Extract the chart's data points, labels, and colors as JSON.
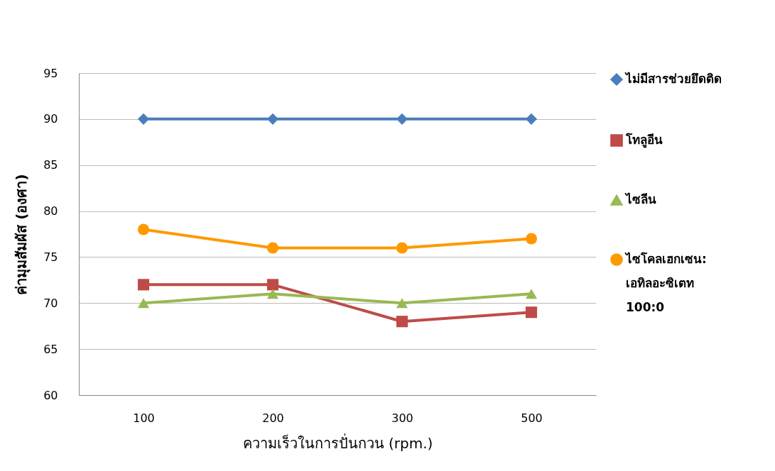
{
  "chart_data": {
    "type": "line",
    "xlabel": "ความเร็วในการปั่นกวน (rpm.)",
    "ylabel": "ค่ามุมสัมผัส (องศา)",
    "categories": [
      "100",
      "200",
      "300",
      "500"
    ],
    "series": [
      {
        "name": "ไม่มีสารช่วยยึดติด",
        "color": "#4a7ebb",
        "marker": "diamond",
        "values": [
          90,
          90,
          90,
          90
        ]
      },
      {
        "name": "โทลูอีน",
        "color": "#be4b48",
        "marker": "square",
        "values": [
          72,
          72,
          68,
          69
        ]
      },
      {
        "name": "ไซลีน",
        "color": "#98b954",
        "marker": "triangle",
        "values": [
          70,
          71,
          70,
          71
        ]
      },
      {
        "name": "ไซโคลเฮกเซน: เอทิลอะซิเตท 100:0",
        "color": "#ff9900",
        "marker": "circle",
        "values": [
          78,
          76,
          76,
          77
        ]
      }
    ],
    "ylim": [
      60,
      95
    ],
    "yticks": [
      60,
      65,
      70,
      75,
      80,
      85,
      90,
      95
    ],
    "grid": "y",
    "legend": "right",
    "line_style": "solid"
  }
}
